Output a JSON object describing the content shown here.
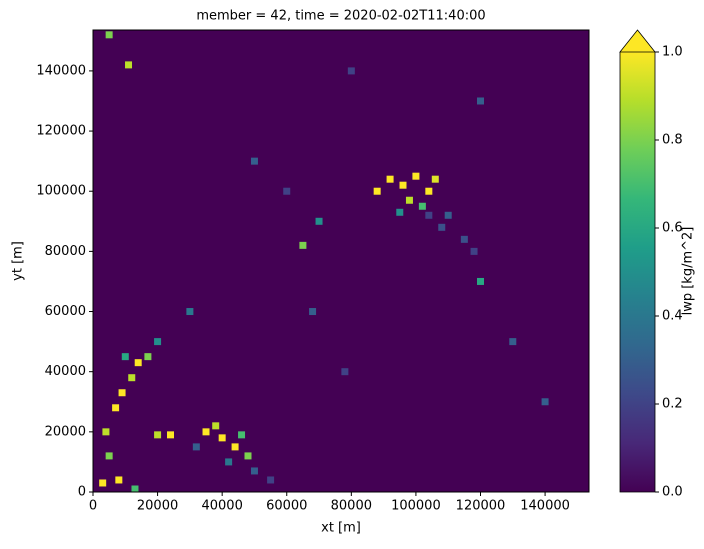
{
  "chart_data": {
    "type": "heatmap",
    "title": "member = 42, time = 2020-02-02T11:40:00",
    "xlabel": "xt [m]",
    "ylabel": "yt [m]",
    "xlim": [
      0,
      153600
    ],
    "ylim": [
      0,
      153600
    ],
    "xticks": [
      0,
      20000,
      40000,
      60000,
      80000,
      100000,
      120000,
      140000
    ],
    "yticks": [
      0,
      20000,
      40000,
      60000,
      80000,
      100000,
      120000,
      140000
    ],
    "colormap": "viridis",
    "colorbar": {
      "label": "lwp [kg/m^2]",
      "clim": [
        0,
        1
      ],
      "extend": "max",
      "ticks": [
        {
          "value": 0,
          "label": "0.0"
        },
        0.2,
        0.4,
        0.6,
        0.8,
        {
          "value": 1,
          "label": "1.0"
        }
      ]
    },
    "x": [
      92000,
      96000,
      100000,
      104000,
      98000,
      106000,
      88000,
      102000,
      110000,
      108000,
      115000,
      118000,
      104000,
      95000,
      35000,
      40000,
      44000,
      38000,
      48000,
      42000,
      50000,
      55000,
      46000,
      32000,
      24000,
      20000,
      3000,
      8000,
      5000,
      4000,
      7000,
      9000,
      12000,
      14000,
      17000,
      20000,
      10000,
      13000,
      11000,
      5000,
      65000,
      70000,
      68000,
      120000,
      60000,
      30000,
      50000,
      140000,
      130000,
      78000,
      120000,
      80000
    ],
    "y": [
      104000,
      102000,
      105000,
      100000,
      97000,
      104000,
      100000,
      95000,
      92000,
      88000,
      84000,
      80000,
      92000,
      93000,
      20000,
      18000,
      15000,
      22000,
      12000,
      10000,
      7000,
      4000,
      19000,
      15000,
      19000,
      19000,
      3000,
      4000,
      12000,
      20000,
      28000,
      33000,
      38000,
      43000,
      45000,
      50000,
      45000,
      1000,
      142000,
      152000,
      82000,
      90000,
      60000,
      70000,
      100000,
      60000,
      110000,
      30000,
      50000,
      40000,
      130000,
      140000
    ],
    "values": [
      1,
      1,
      1,
      1,
      0.9,
      0.95,
      1,
      0.7,
      0.3,
      0.25,
      0.25,
      0.2,
      0.2,
      0.5,
      1,
      1,
      1,
      0.9,
      0.8,
      0.4,
      0.3,
      0.2,
      0.7,
      0.3,
      1,
      0.9,
      1,
      1,
      0.8,
      0.9,
      1,
      1,
      0.9,
      1,
      0.8,
      0.5,
      0.6,
      0.7,
      0.9,
      0.8,
      0.8,
      0.5,
      0.3,
      0.6,
      0.2,
      0.4,
      0.3,
      0.3,
      0.3,
      0.2,
      0.3,
      0.2
    ]
  }
}
